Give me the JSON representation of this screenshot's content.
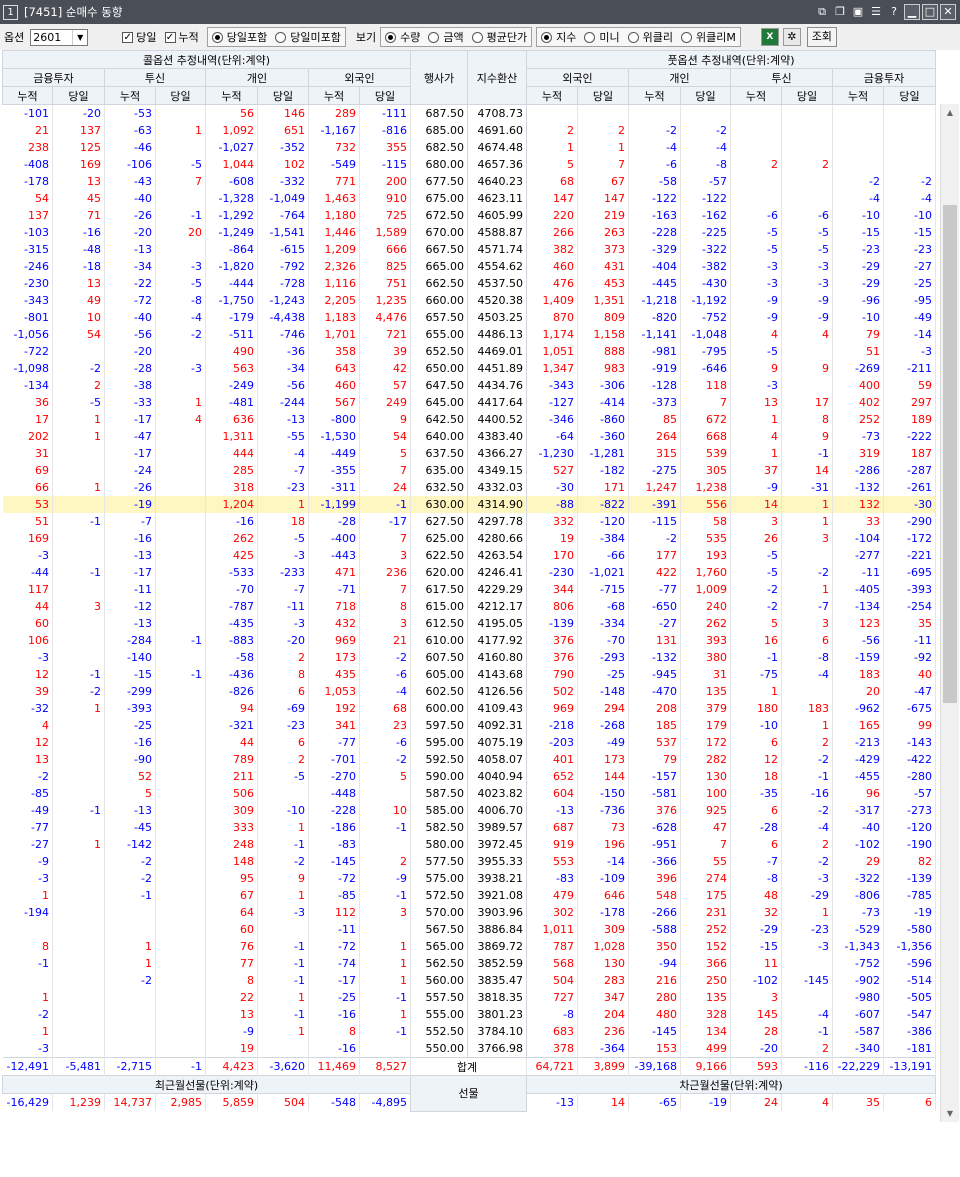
{
  "window": {
    "number": "1",
    "title": "[7451] 순매수 동향"
  },
  "toolbar": {
    "option_label": "옵션",
    "option_value": "2601",
    "check1": "당일",
    "check2": "누적",
    "radio_a1": "당일포함",
    "radio_a2": "당일미포함",
    "view_label": "보기",
    "radio_b1": "수량",
    "radio_b2": "금액",
    "radio_b3": "평균단가",
    "radio_c1": "지수",
    "radio_c2": "미니",
    "radio_c3": "위클리",
    "radio_c4": "위클리M",
    "query_button": "조회"
  },
  "header": {
    "call_title": "콜옵션 추정내역(단위:계약)",
    "put_title": "풋옵션 추정내역(단위:계약)",
    "strike": "행사가",
    "index": "지수환산",
    "groups_call": [
      "금융투자",
      "투신",
      "개인",
      "외국인"
    ],
    "groups_put": [
      "외국인",
      "개인",
      "투신",
      "금융투자"
    ],
    "sub1": "누적",
    "sub2": "당일"
  },
  "rows": [
    [
      "-101",
      "-20",
      "-53",
      "",
      "56",
      "146",
      "289",
      "-111",
      "687.50",
      "4708.73",
      "",
      "",
      "",
      "",
      "",
      "",
      "",
      ""
    ],
    [
      "21",
      "137",
      "-63",
      "1",
      "1,092",
      "651",
      "-1,167",
      "-816",
      "685.00",
      "4691.60",
      "2",
      "2",
      "-2",
      "-2",
      "",
      "",
      "",
      ""
    ],
    [
      "238",
      "125",
      "-46",
      "",
      "-1,027",
      "-352",
      "732",
      "355",
      "682.50",
      "4674.48",
      "1",
      "1",
      "-4",
      "-4",
      "",
      "",
      "",
      ""
    ],
    [
      "-408",
      "169",
      "-106",
      "-5",
      "1,044",
      "102",
      "-549",
      "-115",
      "680.00",
      "4657.36",
      "5",
      "7",
      "-6",
      "-8",
      "2",
      "2",
      "",
      ""
    ],
    [
      "-178",
      "13",
      "-43",
      "7",
      "-608",
      "-332",
      "771",
      "200",
      "677.50",
      "4640.23",
      "68",
      "67",
      "-58",
      "-57",
      "",
      "",
      "-2",
      "-2"
    ],
    [
      "54",
      "45",
      "-40",
      "",
      "-1,328",
      "-1,049",
      "1,463",
      "910",
      "675.00",
      "4623.11",
      "147",
      "147",
      "-122",
      "-122",
      "",
      "",
      "-4",
      "-4"
    ],
    [
      "137",
      "71",
      "-26",
      "-1",
      "-1,292",
      "-764",
      "1,180",
      "725",
      "672.50",
      "4605.99",
      "220",
      "219",
      "-163",
      "-162",
      "-6",
      "-6",
      "-10",
      "-10"
    ],
    [
      "-103",
      "-16",
      "-20",
      "20",
      "-1,249",
      "-1,541",
      "1,446",
      "1,589",
      "670.00",
      "4588.87",
      "266",
      "263",
      "-228",
      "-225",
      "-5",
      "-5",
      "-15",
      "-15"
    ],
    [
      "-315",
      "-48",
      "-13",
      "",
      "-864",
      "-615",
      "1,209",
      "666",
      "667.50",
      "4571.74",
      "382",
      "373",
      "-329",
      "-322",
      "-5",
      "-5",
      "-23",
      "-23"
    ],
    [
      "-246",
      "-18",
      "-34",
      "-3",
      "-1,820",
      "-792",
      "2,326",
      "825",
      "665.00",
      "4554.62",
      "460",
      "431",
      "-404",
      "-382",
      "-3",
      "-3",
      "-29",
      "-27"
    ],
    [
      "-230",
      "13",
      "-22",
      "-5",
      "-444",
      "-728",
      "1,116",
      "751",
      "662.50",
      "4537.50",
      "476",
      "453",
      "-445",
      "-430",
      "-3",
      "-3",
      "-29",
      "-25"
    ],
    [
      "-343",
      "49",
      "-72",
      "-8",
      "-1,750",
      "-1,243",
      "2,205",
      "1,235",
      "660.00",
      "4520.38",
      "1,409",
      "1,351",
      "-1,218",
      "-1,192",
      "-9",
      "-9",
      "-96",
      "-95"
    ],
    [
      "-801",
      "10",
      "-40",
      "-4",
      "-179",
      "-4,438",
      "1,183",
      "4,476",
      "657.50",
      "4503.25",
      "870",
      "809",
      "-820",
      "-752",
      "-9",
      "-9",
      "-10",
      "-49"
    ],
    [
      "-1,056",
      "54",
      "-56",
      "-2",
      "-511",
      "-746",
      "1,701",
      "721",
      "655.00",
      "4486.13",
      "1,174",
      "1,158",
      "-1,141",
      "-1,048",
      "4",
      "4",
      "79",
      "-14"
    ],
    [
      "-722",
      "",
      "-20",
      "",
      "490",
      "-36",
      "358",
      "39",
      "652.50",
      "4469.01",
      "1,051",
      "888",
      "-981",
      "-795",
      "-5",
      "",
      "51",
      "-3"
    ],
    [
      "-1,098",
      "-2",
      "-28",
      "-3",
      "563",
      "-34",
      "643",
      "42",
      "650.00",
      "4451.89",
      "1,347",
      "983",
      "-919",
      "-646",
      "9",
      "9",
      "-269",
      "-211"
    ],
    [
      "-134",
      "2",
      "-38",
      "",
      "-249",
      "-56",
      "460",
      "57",
      "647.50",
      "4434.76",
      "-343",
      "-306",
      "-128",
      "118",
      "-3",
      "",
      "400",
      "59"
    ],
    [
      "36",
      "-5",
      "-33",
      "1",
      "-481",
      "-244",
      "567",
      "249",
      "645.00",
      "4417.64",
      "-127",
      "-414",
      "-373",
      "7",
      "13",
      "17",
      "402",
      "297"
    ],
    [
      "17",
      "1",
      "-17",
      "4",
      "636",
      "-13",
      "-800",
      "9",
      "642.50",
      "4400.52",
      "-346",
      "-860",
      "85",
      "672",
      "1",
      "8",
      "252",
      "189"
    ],
    [
      "202",
      "1",
      "-47",
      "",
      "1,311",
      "-55",
      "-1,530",
      "54",
      "640.00",
      "4383.40",
      "-64",
      "-360",
      "264",
      "668",
      "4",
      "9",
      "-73",
      "-222"
    ],
    [
      "31",
      "",
      "-17",
      "",
      "444",
      "-4",
      "-449",
      "5",
      "637.50",
      "4366.27",
      "-1,230",
      "-1,281",
      "315",
      "539",
      "1",
      "-1",
      "319",
      "187"
    ],
    [
      "69",
      "",
      "-24",
      "",
      "285",
      "-7",
      "-355",
      "7",
      "635.00",
      "4349.15",
      "527",
      "-182",
      "-275",
      "305",
      "37",
      "14",
      "-286",
      "-287"
    ],
    [
      "66",
      "1",
      "-26",
      "",
      "318",
      "-23",
      "-311",
      "24",
      "632.50",
      "4332.03",
      "-30",
      "171",
      "1,247",
      "1,238",
      "-9",
      "-31",
      "-132",
      "-261"
    ],
    [
      "53",
      "",
      "-19",
      "",
      "1,204",
      "1",
      "-1,199",
      "-1",
      "630.00",
      "4314.90",
      "-88",
      "-822",
      "-391",
      "556",
      "14",
      "1",
      "132",
      "-30"
    ],
    [
      "51",
      "-1",
      "-7",
      "",
      "-16",
      "18",
      "-28",
      "-17",
      "627.50",
      "4297.78",
      "332",
      "-120",
      "-115",
      "58",
      "3",
      "1",
      "33",
      "-290"
    ],
    [
      "169",
      "",
      "-16",
      "",
      "262",
      "-5",
      "-400",
      "7",
      "625.00",
      "4280.66",
      "19",
      "-384",
      "-2",
      "535",
      "26",
      "3",
      "-104",
      "-172"
    ],
    [
      "-3",
      "",
      "-13",
      "",
      "425",
      "-3",
      "-443",
      "3",
      "622.50",
      "4263.54",
      "170",
      "-66",
      "177",
      "193",
      "-5",
      "",
      "-277",
      "-221"
    ],
    [
      "-44",
      "-1",
      "-17",
      "",
      "-533",
      "-233",
      "471",
      "236",
      "620.00",
      "4246.41",
      "-230",
      "-1,021",
      "422",
      "1,760",
      "-5",
      "-2",
      "-11",
      "-695"
    ],
    [
      "117",
      "",
      "-11",
      "",
      "-70",
      "-7",
      "-71",
      "7",
      "617.50",
      "4229.29",
      "344",
      "-715",
      "-77",
      "1,009",
      "-2",
      "1",
      "-405",
      "-393"
    ],
    [
      "44",
      "3",
      "-12",
      "",
      "-787",
      "-11",
      "718",
      "8",
      "615.00",
      "4212.17",
      "806",
      "-68",
      "-650",
      "240",
      "-2",
      "-7",
      "-134",
      "-254"
    ],
    [
      "60",
      "",
      "-13",
      "",
      "-435",
      "-3",
      "432",
      "3",
      "612.50",
      "4195.05",
      "-139",
      "-334",
      "-27",
      "262",
      "5",
      "3",
      "123",
      "35"
    ],
    [
      "106",
      "",
      "-284",
      "-1",
      "-883",
      "-20",
      "969",
      "21",
      "610.00",
      "4177.92",
      "376",
      "-70",
      "131",
      "393",
      "16",
      "6",
      "-56",
      "-11"
    ],
    [
      "-3",
      "",
      "-140",
      "",
      "-58",
      "2",
      "173",
      "-2",
      "607.50",
      "4160.80",
      "376",
      "-293",
      "-132",
      "380",
      "-1",
      "-8",
      "-159",
      "-92"
    ],
    [
      "12",
      "-1",
      "-15",
      "-1",
      "-436",
      "8",
      "435",
      "-6",
      "605.00",
      "4143.68",
      "790",
      "-25",
      "-945",
      "31",
      "-75",
      "-4",
      "183",
      "40"
    ],
    [
      "39",
      "-2",
      "-299",
      "",
      "-826",
      "6",
      "1,053",
      "-4",
      "602.50",
      "4126.56",
      "502",
      "-148",
      "-470",
      "135",
      "1",
      "",
      "20",
      "-47"
    ],
    [
      "-32",
      "1",
      "-393",
      "",
      "94",
      "-69",
      "192",
      "68",
      "600.00",
      "4109.43",
      "969",
      "294",
      "208",
      "379",
      "180",
      "183",
      "-962",
      "-675"
    ],
    [
      "4",
      "",
      "-25",
      "",
      "-321",
      "-23",
      "341",
      "23",
      "597.50",
      "4092.31",
      "-218",
      "-268",
      "185",
      "179",
      "-10",
      "1",
      "165",
      "99"
    ],
    [
      "12",
      "",
      "-16",
      "",
      "44",
      "6",
      "-77",
      "-6",
      "595.00",
      "4075.19",
      "-203",
      "-49",
      "537",
      "172",
      "6",
      "2",
      "-213",
      "-143"
    ],
    [
      "13",
      "",
      "-90",
      "",
      "789",
      "2",
      "-701",
      "-2",
      "592.50",
      "4058.07",
      "401",
      "173",
      "79",
      "282",
      "12",
      "-2",
      "-429",
      "-422"
    ],
    [
      "-2",
      "",
      "52",
      "",
      "211",
      "-5",
      "-270",
      "5",
      "590.00",
      "4040.94",
      "652",
      "144",
      "-157",
      "130",
      "18",
      "-1",
      "-455",
      "-280"
    ],
    [
      "-85",
      "",
      "5",
      "",
      "506",
      "",
      "-448",
      "",
      "587.50",
      "4023.82",
      "604",
      "-150",
      "-581",
      "100",
      "-35",
      "-16",
      "96",
      "-57"
    ],
    [
      "-49",
      "-1",
      "-13",
      "",
      "309",
      "-10",
      "-228",
      "10",
      "585.00",
      "4006.70",
      "-13",
      "-736",
      "376",
      "925",
      "6",
      "-2",
      "-317",
      "-273"
    ],
    [
      "-77",
      "",
      "-45",
      "",
      "333",
      "1",
      "-186",
      "-1",
      "582.50",
      "3989.57",
      "687",
      "73",
      "-628",
      "47",
      "-28",
      "-4",
      "-40",
      "-120"
    ],
    [
      "-27",
      "1",
      "-142",
      "",
      "248",
      "-1",
      "-83",
      "",
      "580.00",
      "3972.45",
      "919",
      "196",
      "-951",
      "7",
      "6",
      "2",
      "-102",
      "-190"
    ],
    [
      "-9",
      "",
      "-2",
      "",
      "148",
      "-2",
      "-145",
      "2",
      "577.50",
      "3955.33",
      "553",
      "-14",
      "-366",
      "55",
      "-7",
      "-2",
      "29",
      "82"
    ],
    [
      "-3",
      "",
      "-2",
      "",
      "95",
      "9",
      "-72",
      "-9",
      "575.00",
      "3938.21",
      "-83",
      "-109",
      "396",
      "274",
      "-8",
      "-3",
      "-322",
      "-139"
    ],
    [
      "1",
      "",
      "-1",
      "",
      "67",
      "1",
      "-85",
      "-1",
      "572.50",
      "3921.08",
      "479",
      "646",
      "548",
      "175",
      "48",
      "-29",
      "-806",
      "-785"
    ],
    [
      "-194",
      "",
      "",
      "",
      "64",
      "-3",
      "112",
      "3",
      "570.00",
      "3903.96",
      "302",
      "-178",
      "-266",
      "231",
      "32",
      "1",
      "-73",
      "-19"
    ],
    [
      "",
      "",
      "",
      "",
      "60",
      "",
      "-11",
      "",
      "567.50",
      "3886.84",
      "1,011",
      "309",
      "-588",
      "252",
      "-29",
      "-23",
      "-529",
      "-580"
    ],
    [
      "8",
      "",
      "1",
      "",
      "76",
      "-1",
      "-72",
      "1",
      "565.00",
      "3869.72",
      "787",
      "1,028",
      "350",
      "152",
      "-15",
      "-3",
      "-1,343",
      "-1,356"
    ],
    [
      "-1",
      "",
      "1",
      "",
      "77",
      "-1",
      "-74",
      "1",
      "562.50",
      "3852.59",
      "568",
      "130",
      "-94",
      "366",
      "11",
      "",
      "-752",
      "-596"
    ],
    [
      "",
      "",
      "-2",
      "",
      "8",
      "-1",
      "-17",
      "1",
      "560.00",
      "3835.47",
      "504",
      "283",
      "216",
      "250",
      "-102",
      "-145",
      "-902",
      "-514"
    ],
    [
      "1",
      "",
      "",
      "",
      "22",
      "1",
      "-25",
      "-1",
      "557.50",
      "3818.35",
      "727",
      "347",
      "280",
      "135",
      "3",
      "",
      "-980",
      "-505"
    ],
    [
      "-2",
      "",
      "",
      "",
      "13",
      "-1",
      "-16",
      "1",
      "555.00",
      "3801.23",
      "-8",
      "204",
      "480",
      "328",
      "145",
      "-4",
      "-607",
      "-547"
    ],
    [
      "1",
      "",
      "",
      "",
      "-9",
      "1",
      "8",
      "-1",
      "552.50",
      "3784.10",
      "683",
      "236",
      "-145",
      "134",
      "28",
      "-1",
      "-587",
      "-386"
    ],
    [
      "-3",
      "",
      "",
      "",
      "19",
      "",
      "-16",
      "",
      "550.00",
      "3766.98",
      "378",
      "-364",
      "153",
      "499",
      "-20",
      "2",
      "-340",
      "-181"
    ]
  ],
  "highlight_strike": "630.00",
  "summary": {
    "label": "합계",
    "values": [
      "-12,491",
      "-5,481",
      "-2,715",
      "-1",
      "4,423",
      "-3,620",
      "11,469",
      "8,527",
      "",
      "",
      "64,721",
      "3,899",
      "-39,168",
      "9,166",
      "593",
      "-116",
      "-22,229",
      "-13,191"
    ]
  },
  "futures": {
    "recent_title": "최근월선물(단위:계약)",
    "next_title": "차근월선물(단위:계약)",
    "label": "선물",
    "recent": [
      "-16,429",
      "1,239",
      "14,737",
      "2,985",
      "5,859",
      "504",
      "-548",
      "-4,895"
    ],
    "next": [
      "-13",
      "14",
      "-65",
      "-19",
      "24",
      "4",
      "35",
      "6"
    ]
  }
}
